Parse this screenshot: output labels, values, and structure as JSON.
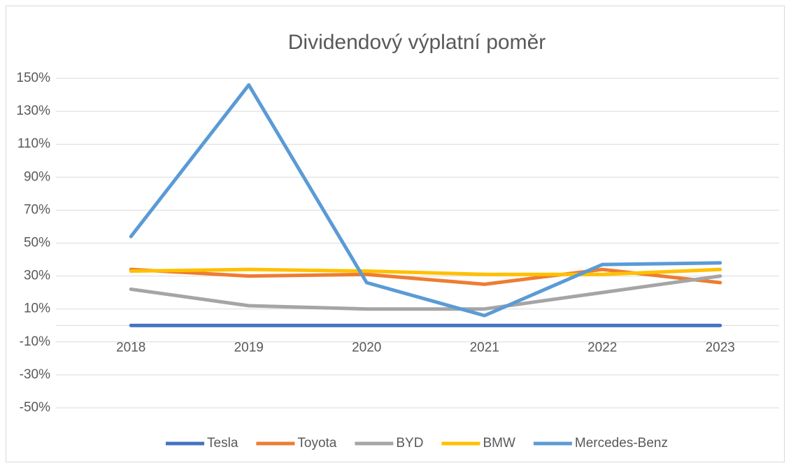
{
  "chart_data": {
    "type": "line",
    "title": "Dividendový výplatní poměr",
    "categories": [
      "2018",
      "2019",
      "2020",
      "2021",
      "2022",
      "2023"
    ],
    "series": [
      {
        "name": "Tesla",
        "color": "#4472c4",
        "values": [
          0,
          0,
          0,
          0,
          0,
          0
        ]
      },
      {
        "name": "Toyota",
        "color": "#ed7d31",
        "values": [
          34,
          30,
          31,
          25,
          34,
          26
        ]
      },
      {
        "name": "BYD",
        "color": "#a5a5a5",
        "values": [
          22,
          12,
          10,
          10,
          20,
          30
        ]
      },
      {
        "name": "BMW",
        "color": "#ffc000",
        "values": [
          33,
          34,
          33,
          31,
          31,
          34
        ]
      },
      {
        "name": "Mercedes-Benz",
        "color": "#5b9bd5",
        "values": [
          54,
          146,
          26,
          6,
          37,
          38
        ]
      }
    ],
    "ylim": [
      -50,
      150
    ],
    "yticks": [
      {
        "value": -50,
        "label": "-50%"
      },
      {
        "value": -30,
        "label": "-30%"
      },
      {
        "value": -10,
        "label": "-10%"
      },
      {
        "value": 10,
        "label": "10%"
      },
      {
        "value": 30,
        "label": "30%"
      },
      {
        "value": 50,
        "label": "50%"
      },
      {
        "value": 70,
        "label": "70%"
      },
      {
        "value": 90,
        "label": "90%"
      },
      {
        "value": 110,
        "label": "110%"
      },
      {
        "value": 130,
        "label": "130%"
      },
      {
        "value": 150,
        "label": "150%"
      }
    ],
    "grid": true,
    "legend": "bottom"
  }
}
